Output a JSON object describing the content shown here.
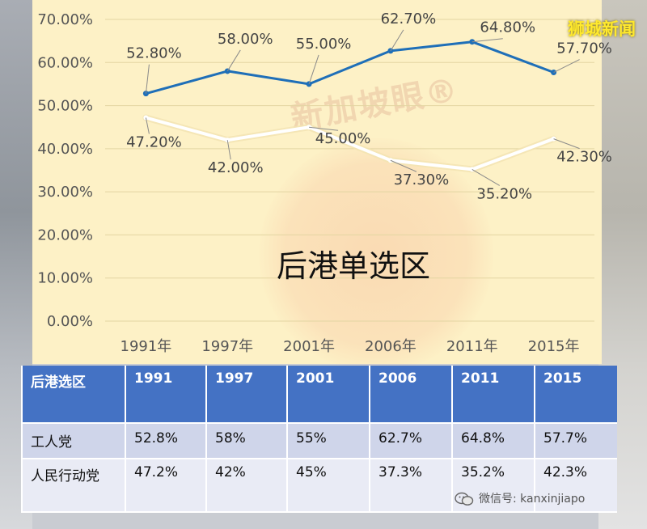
{
  "brand": "狮城新闻",
  "watermark": "新加坡眼®",
  "wechat": "微信号: kanxinjiapo",
  "chart_data": {
    "type": "line",
    "title": "后港单选区",
    "categories": [
      "1991年",
      "1997年",
      "2001年",
      "2006年",
      "2011年",
      "2015年"
    ],
    "y_ticks": [
      "0.00%",
      "10.00%",
      "20.00%",
      "30.00%",
      "40.00%",
      "50.00%",
      "60.00%",
      "70.00%"
    ],
    "ylim": [
      0,
      70
    ],
    "grid": true,
    "legend": "none",
    "series": [
      {
        "values": [
          52.8,
          58.0,
          55.0,
          62.7,
          64.8,
          57.7
        ],
        "labels": [
          "52.80%",
          "58.00%",
          "55.00%",
          "62.70%",
          "64.80%",
          "57.70%"
        ],
        "color": "#1f6fb8"
      },
      {
        "values": [
          47.2,
          42.0,
          45.0,
          37.3,
          35.2,
          42.3
        ],
        "labels": [
          "47.20%",
          "42.00%",
          "45.00%",
          "37.30%",
          "35.20%",
          "42.30%"
        ],
        "color": "#ffffff"
      }
    ]
  },
  "table": {
    "header": [
      "后港选区",
      "1991",
      "1997",
      "2001",
      "2006",
      "2011",
      "2015"
    ],
    "rows": [
      [
        "工人党",
        "52.8%",
        "58%",
        "55%",
        "62.7%",
        "64.8%",
        "57.7%"
      ],
      [
        "人民行动党",
        "47.2%",
        "42%",
        "45%",
        "37.3%",
        "35.2%",
        "42.3%"
      ]
    ]
  }
}
